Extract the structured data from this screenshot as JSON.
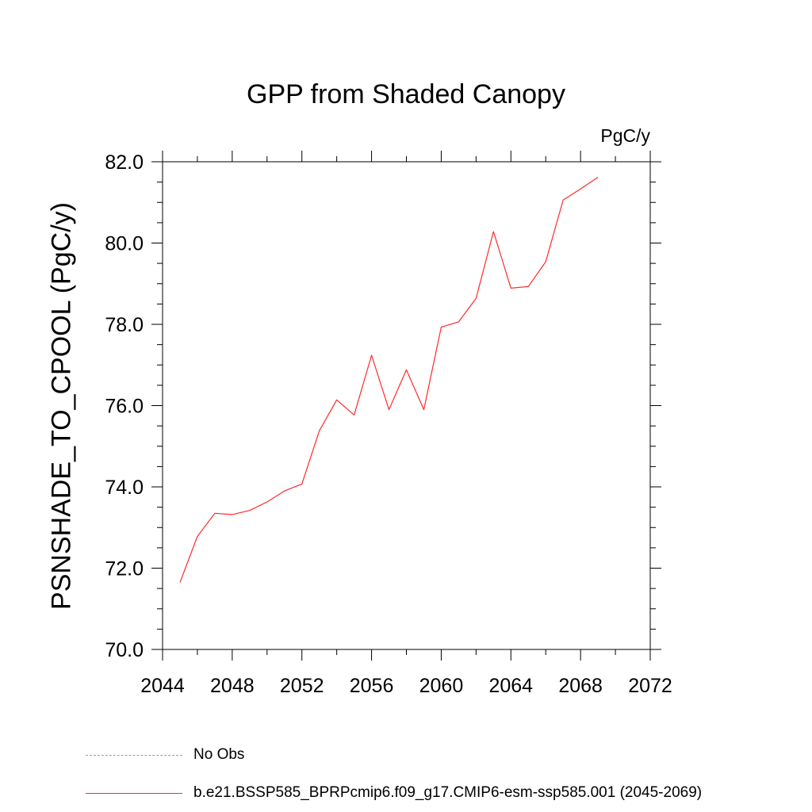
{
  "chart_data": {
    "type": "line",
    "title": "GPP from Shaded Canopy",
    "units": "PgC/y",
    "ylabel": "PSNSHADE_TO_CPOOL  (PgC/y)",
    "xlabel": "",
    "xlim": [
      2044,
      2072
    ],
    "ylim": [
      70.0,
      82.0
    ],
    "x_ticks": [
      2044,
      2048,
      2052,
      2056,
      2060,
      2064,
      2068,
      2072
    ],
    "x_tick_labels": [
      "2044",
      "2048",
      "2052",
      "2056",
      "2060",
      "2064",
      "2068",
      "2072"
    ],
    "y_ticks": [
      70,
      72,
      74,
      76,
      78,
      80,
      82
    ],
    "y_tick_labels": [
      "70.0",
      "72.0",
      "74.0",
      "76.0",
      "78.0",
      "80.0",
      "82.0"
    ],
    "grid": false,
    "legend_position": "bottom",
    "series": [
      {
        "name": "b.e21.BSSP585_BPRPcmip6.f09_g17.CMIP6-esm-ssp585.001 (2045-2069)",
        "color": "#ff2a2a",
        "style": "solid",
        "x": [
          2045,
          2046,
          2047,
          2048,
          2049,
          2050,
          2051,
          2052,
          2053,
          2054,
          2055,
          2056,
          2057,
          2058,
          2059,
          2060,
          2061,
          2062,
          2063,
          2064,
          2065,
          2066,
          2067,
          2068,
          2069
        ],
        "values": [
          71.65,
          72.78,
          73.35,
          73.32,
          73.42,
          73.63,
          73.9,
          74.07,
          75.38,
          76.14,
          75.77,
          77.24,
          75.9,
          76.88,
          75.9,
          77.93,
          78.06,
          78.64,
          80.28,
          78.89,
          78.93,
          79.54,
          81.06,
          81.33,
          81.62
        ]
      }
    ]
  },
  "legend": [
    {
      "label": "No Obs",
      "color": "#9a8fd8",
      "style": "dashed"
    },
    {
      "label": "b.e21.BSSP585_BPRPcmip6.f09_g17.CMIP6-esm-ssp585.001 (2045-2069)",
      "color": "#ff2a2a",
      "style": "solid"
    }
  ]
}
